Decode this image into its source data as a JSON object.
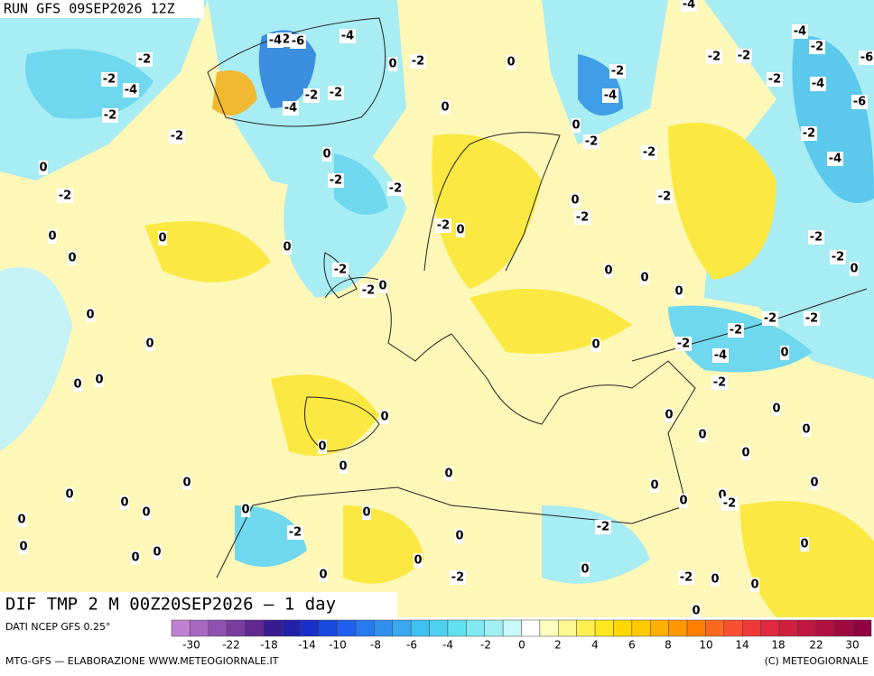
{
  "header": {
    "run": "RUN GFS 09SEP2026 12Z"
  },
  "map": {
    "title": "DIF TMP 2 M 00Z20SEP2026 — 1 day"
  },
  "contour_labels": [
    -2,
    -2,
    -4,
    -2,
    -2,
    0,
    -2,
    0,
    0,
    0,
    0,
    0,
    0,
    0,
    0,
    0,
    -2,
    -2,
    -2,
    -2,
    0,
    -2,
    -6,
    -4,
    0,
    -2,
    0,
    -2,
    -2,
    -4,
    0,
    -2,
    0,
    -2,
    -4,
    0,
    -2,
    -2,
    0,
    -2,
    -2,
    0,
    0,
    0,
    -2,
    -2,
    -2,
    -4,
    -2,
    -4,
    -2,
    -4,
    -2,
    -2,
    0,
    -2,
    -2,
    -2,
    -2,
    -4,
    0,
    -2,
    0,
    0,
    0,
    0,
    0,
    0,
    0,
    0,
    0,
    0,
    -2,
    0,
    0,
    0,
    0,
    0,
    0,
    0,
    0,
    0,
    0,
    0,
    0,
    0,
    0,
    -2,
    0,
    -2,
    0,
    0,
    0,
    -2,
    0,
    -2,
    0,
    0,
    0,
    -4,
    -6,
    -6,
    -4
  ],
  "colorbar": {
    "source": "DATI NCEP GFS 0.25°",
    "ticks": [
      -30,
      -22,
      -18,
      -14,
      -10,
      -8,
      -6,
      -4,
      -2,
      0,
      2,
      4,
      6,
      8,
      10,
      14,
      18,
      22,
      30
    ]
  },
  "footer": {
    "left": "MTG-GFS — ELABORAZIONE WWW.METEOGIORNALE.IT",
    "right": "(C) METEOGIORNALE"
  }
}
